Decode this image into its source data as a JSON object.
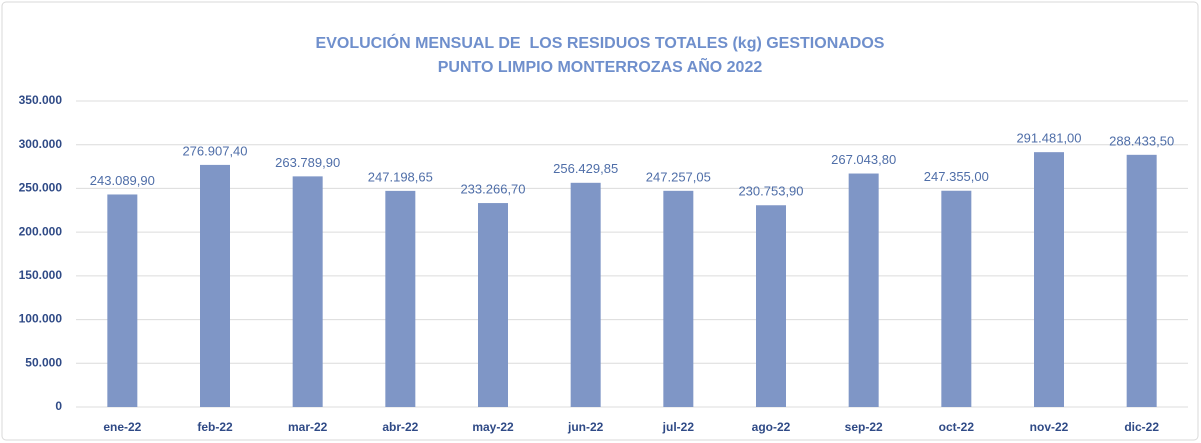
{
  "chart_data": {
    "type": "bar",
    "title": "EVOLUCIÓN MENSUAL DE  LOS RESIDUOS TOTALES (kg) GESTIONADOS",
    "subtitle": "PUNTO LIMPIO MONTERROZAS AÑO 2022",
    "categories": [
      "ene-22",
      "feb-22",
      "mar-22",
      "abr-22",
      "may-22",
      "jun-22",
      "jul-22",
      "ago-22",
      "sep-22",
      "oct-22",
      "nov-22",
      "dic-22"
    ],
    "values": [
      243089.9,
      276907.4,
      263789.9,
      247198.65,
      233266.7,
      256429.85,
      247257.05,
      230753.9,
      267043.8,
      247355.0,
      291481.0,
      288433.5
    ],
    "value_labels": [
      "243.089,90",
      "276.907,40",
      "263.789,90",
      "247.198,65",
      "233.266,70",
      "256.429,85",
      "247.257,05",
      "230.753,90",
      "267.043,80",
      "247.355,00",
      "291.481,00",
      "288.433,50"
    ],
    "color": "#7f96c6",
    "ylim": [
      0,
      350000
    ],
    "yticks": [
      {
        "value": 0,
        "label": "0"
      },
      {
        "value": 50000,
        "label": "50.000"
      },
      {
        "value": 100000,
        "label": "100.000"
      },
      {
        "value": 150000,
        "label": "150.000"
      },
      {
        "value": 200000,
        "label": "200.000"
      },
      {
        "value": 250000,
        "label": "250.000"
      },
      {
        "value": 300000,
        "label": "300.000"
      },
      {
        "value": 350000,
        "label": "350.000"
      }
    ],
    "grid": true
  }
}
